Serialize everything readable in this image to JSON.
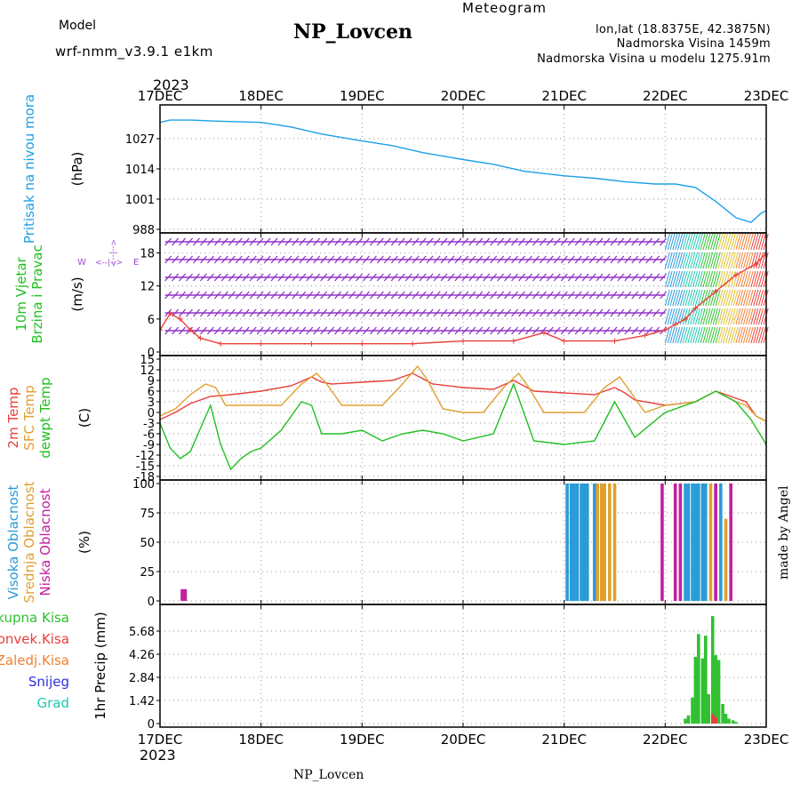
{
  "header": {
    "model_label": "Model",
    "model_name": "wrf-nmm_v3.9.1  e1km",
    "station": "NP_Lovcen",
    "product": "Meteogram",
    "coords": "lon,lat (18.8375E, 42.3875N)",
    "elevation": "Nadmorska Visina 1459m",
    "model_elevation": "Nadmorska Visina u modelu 1275.91m",
    "credit": "made by Angel",
    "footer_station": "NP_Lovcen"
  },
  "time_axis": {
    "year_top": "2023",
    "year_bottom": "2023",
    "ticks": [
      "17DEC",
      "18DEC",
      "19DEC",
      "20DEC",
      "21DEC",
      "22DEC",
      "23DEC"
    ],
    "range_days": [
      0,
      6
    ]
  },
  "colors": {
    "pressure": "#1ea0e6",
    "temp2m": "#e8403c",
    "sfc": "#e0a030",
    "dew": "#20c020",
    "wind_speed": "#e8403c",
    "barb": "#9030c8",
    "cloud_high": "#2a9bd8",
    "cloud_mid": "#e0a030",
    "cloud_low": "#c020a0",
    "precip_total": "#30c030",
    "precip_conv": "#e8403c",
    "precip_frz": "#f08030",
    "precip_snow": "#3030e0",
    "precip_grad": "#20c8b0",
    "label_magenta": "#a050d0",
    "label_gold": "#e6b450"
  },
  "chart_data": [
    {
      "type": "line",
      "panel": "pressure",
      "ylabels": [
        {
          "text": "Pritisak na nivou mora",
          "color": "#1ea0e6"
        }
      ],
      "unit": "(hPa)",
      "ylim": [
        988,
        1040
      ],
      "yticks": [
        988,
        1001,
        1014,
        1027
      ],
      "series": [
        {
          "color": "#1ea0e6",
          "x": [
            0,
            0.1,
            0.3,
            0.6,
            1.0,
            1.3,
            1.6,
            2.0,
            2.3,
            2.6,
            3.0,
            3.3,
            3.6,
            4.0,
            4.3,
            4.6,
            4.9,
            5.0,
            5.1,
            5.3,
            5.5,
            5.7,
            5.85,
            5.95,
            6.0
          ],
          "y": [
            1034,
            1035,
            1035,
            1034.5,
            1034,
            1032,
            1029,
            1026,
            1024,
            1021,
            1018,
            1016,
            1013,
            1011,
            1010,
            1008.5,
            1007.5,
            1007.5,
            1007.5,
            1006,
            1000,
            993,
            991,
            995,
            996
          ]
        }
      ]
    },
    {
      "type": "line",
      "panel": "wind",
      "ylabels": [
        {
          "text": "10m Vjetar",
          "color": "#20c020"
        },
        {
          "text": "Brzina i Pravac",
          "color": "#20c020"
        }
      ],
      "unit": "(m/s)",
      "compass": {
        "w": "W",
        "e": "E",
        "n": "N",
        "s": "S",
        "arrow": "<--|-->"
      },
      "ylim": [
        0,
        21
      ],
      "yticks": [
        0,
        6,
        12,
        18
      ],
      "series": [
        {
          "name": "speed",
          "color": "#e8403c",
          "x": [
            0,
            0.1,
            0.2,
            0.3,
            0.4,
            0.6,
            1.0,
            1.5,
            2.0,
            2.5,
            3.0,
            3.5,
            3.8,
            4.0,
            4.5,
            4.8,
            5.0,
            5.1,
            5.2,
            5.3,
            5.5,
            5.7,
            5.9,
            6.0
          ],
          "y": [
            4,
            7,
            6,
            4,
            2.5,
            1.5,
            1.5,
            1.5,
            1.5,
            1.5,
            2,
            2,
            3.5,
            2,
            2,
            3,
            4,
            5,
            6,
            8,
            11,
            14,
            16,
            18
          ]
        }
      ]
    },
    {
      "type": "line",
      "panel": "temperature",
      "ylabels": [
        {
          "text": "2m Temp",
          "color": "#e8403c"
        },
        {
          "text": "SFC Temp",
          "color": "#e0a030"
        },
        {
          "text": "dewpt Temp",
          "color": "#20c020"
        }
      ],
      "unit": "(C)",
      "ylim": [
        -18,
        15
      ],
      "yticks": [
        15,
        12,
        9,
        6,
        3,
        0,
        -3,
        -6,
        -9,
        -12,
        -15,
        -18
      ],
      "series": [
        {
          "name": "2m Temp",
          "color": "#e8403c",
          "x": [
            0,
            0.15,
            0.3,
            0.5,
            0.7,
            1.0,
            1.3,
            1.5,
            1.6,
            1.7,
            2.0,
            2.3,
            2.5,
            2.6,
            2.7,
            3.0,
            3.3,
            3.5,
            3.6,
            3.7,
            4.0,
            4.3,
            4.5,
            4.6,
            4.7,
            5.0,
            5.3,
            5.5,
            5.7,
            5.8,
            5.9,
            6.0
          ],
          "y": [
            -2,
            0,
            2.5,
            4.5,
            5,
            6,
            7.5,
            10,
            8.5,
            8,
            8.5,
            9,
            11,
            9.5,
            8,
            7,
            6.5,
            9,
            7.5,
            6,
            5.5,
            5,
            7,
            5.5,
            3.5,
            2,
            3,
            6,
            4,
            3,
            -1,
            -2.5
          ]
        },
        {
          "name": "SFC Temp",
          "color": "#e0a030",
          "x": [
            0,
            0.15,
            0.3,
            0.45,
            0.55,
            0.65,
            0.8,
            1.0,
            1.2,
            1.4,
            1.55,
            1.65,
            1.8,
            2.0,
            2.2,
            2.4,
            2.55,
            2.65,
            2.8,
            3.0,
            3.2,
            3.4,
            3.55,
            3.65,
            3.8,
            4.0,
            4.2,
            4.4,
            4.55,
            4.65,
            4.8,
            5.0,
            5.3,
            5.5,
            5.7,
            5.8,
            5.9,
            6.0
          ],
          "y": [
            -1,
            1,
            5,
            8,
            7,
            2,
            2,
            2,
            2,
            8,
            11,
            8,
            2,
            2,
            2,
            8,
            13,
            9,
            1,
            0,
            0,
            7,
            11,
            7,
            0,
            0,
            0,
            7,
            10,
            6,
            0,
            2,
            3,
            6,
            3,
            2,
            -1,
            -2.5
          ]
        },
        {
          "name": "dewpt Temp",
          "color": "#20c020",
          "x": [
            0,
            0.1,
            0.2,
            0.3,
            0.5,
            0.6,
            0.7,
            0.8,
            0.9,
            1.0,
            1.2,
            1.4,
            1.5,
            1.6,
            1.8,
            2.0,
            2.2,
            2.4,
            2.6,
            2.8,
            3.0,
            3.3,
            3.5,
            3.7,
            4.0,
            4.3,
            4.5,
            4.7,
            5.0,
            5.3,
            5.5,
            5.7,
            5.85,
            6.0
          ],
          "y": [
            -3,
            -10,
            -13,
            -11,
            2,
            -9,
            -16,
            -13,
            -11,
            -10,
            -5,
            3,
            2,
            -6,
            -6,
            -5,
            -8,
            -6,
            -5,
            -6,
            -8,
            -6,
            8,
            -8,
            -9,
            -8,
            3,
            -7,
            0,
            3,
            6,
            3,
            -2,
            -9
          ]
        }
      ]
    },
    {
      "type": "bar",
      "panel": "clouds",
      "ylabels": [
        {
          "text": "Visoka Oblacnost",
          "color": "#2a9bd8"
        },
        {
          "text": "Srednja Oblacnost",
          "color": "#e0a030"
        },
        {
          "text": "Niska Oblacnost",
          "color": "#c020a0"
        }
      ],
      "unit": "(%)",
      "ylim": [
        0,
        100
      ],
      "yticks": [
        0,
        25,
        50,
        75,
        100
      ],
      "series": [
        {
          "name": "Visoka Oblacnost",
          "color": "#2a9bd8",
          "x": [
            4.03,
            4.07,
            4.1,
            4.13,
            4.17,
            4.2,
            4.23,
            4.3,
            5.2,
            5.23,
            5.27,
            5.3,
            5.33,
            5.37,
            5.4,
            5.5,
            5.55
          ],
          "values": [
            100,
            100,
            100,
            100,
            100,
            100,
            100,
            100,
            100,
            100,
            100,
            100,
            100,
            100,
            100,
            100,
            100
          ]
        },
        {
          "name": "Srednja Oblacnost",
          "color": "#e0a030",
          "x": [
            4.33,
            4.37,
            4.4,
            4.45,
            4.5,
            5.45,
            5.6
          ],
          "values": [
            100,
            100,
            100,
            100,
            100,
            100,
            70
          ]
        },
        {
          "name": "Niska Oblacnost",
          "color": "#c020a0",
          "x": [
            0.22,
            0.25,
            4.97,
            5.1,
            5.15,
            5.5,
            5.65
          ],
          "values": [
            10,
            10,
            100,
            100,
            100,
            100,
            100
          ]
        }
      ]
    },
    {
      "type": "bar",
      "panel": "precip",
      "ylabels": [
        {
          "text": "Ukupna Kisa",
          "color": "#30c030"
        },
        {
          "text": "Konvek.Kisa",
          "color": "#e8403c"
        },
        {
          "text": "Zaledj.Kisa",
          "color": "#f08030"
        },
        {
          "text": "Snijeg",
          "color": "#3030e0"
        },
        {
          "text": "Grad",
          "color": "#20c8b0"
        }
      ],
      "unit": "1hr Precip (mm)",
      "ylim": [
        0,
        7.1
      ],
      "yticks": [
        0,
        1.42,
        2.84,
        4.26,
        5.68
      ],
      "series": [
        {
          "name": "Ukupna Kisa",
          "color": "#30c030",
          "x": [
            5.2,
            5.23,
            5.27,
            5.3,
            5.33,
            5.37,
            5.4,
            5.43,
            5.47,
            5.5,
            5.53,
            5.57,
            5.6,
            5.63,
            5.67,
            5.7
          ],
          "values": [
            0.3,
            0.5,
            1.6,
            4.1,
            5.5,
            4.0,
            5.4,
            1.8,
            6.6,
            4.2,
            3.9,
            1.2,
            0.6,
            0.3,
            0.2,
            0.1
          ]
        },
        {
          "name": "Konvek.Kisa",
          "color": "#e8403c",
          "x": [
            5.47,
            5.5
          ],
          "values": [
            0.6,
            0.4
          ]
        }
      ]
    }
  ]
}
